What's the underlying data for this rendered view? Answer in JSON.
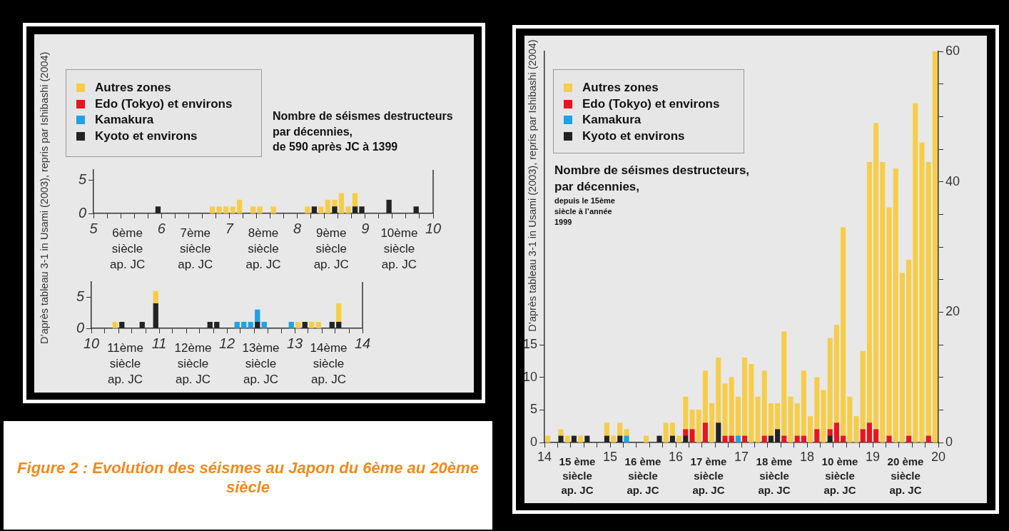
{
  "chart_data": [
    {
      "type": "bar",
      "title": "Nombre de séismes destructeurs par décennies,",
      "subtitle": "de 590 après JC à 1399",
      "stacked": true,
      "legend": "top left",
      "x": [
        5.95,
        6.75,
        6.85,
        6.95,
        7.05,
        7.15,
        7.35,
        7.45,
        7.65,
        8.15,
        8.25,
        8.35,
        8.45,
        8.55,
        8.65,
        8.75,
        8.85,
        8.95,
        9.35,
        9.75
      ],
      "xlim": [
        5,
        10
      ],
      "xticks": [
        5,
        {
          "value": 5.2,
          "label": null
        },
        {
          "value": 5.4,
          "label": null
        },
        {
          "value": 5.6,
          "label": null
        },
        {
          "value": 5.8,
          "label": null
        },
        6,
        {
          "value": 6.2,
          "label": null
        },
        {
          "value": 6.4,
          "label": null
        },
        {
          "value": 6.6,
          "label": null
        },
        {
          "value": 6.8,
          "label": null
        },
        7,
        {
          "value": 7.2,
          "label": null
        },
        {
          "value": 7.4,
          "label": null
        },
        {
          "value": 7.6,
          "label": null
        },
        {
          "value": 7.8,
          "label": null
        },
        8,
        {
          "value": 8.2,
          "label": null
        },
        {
          "value": 8.4,
          "label": null
        },
        {
          "value": 8.6,
          "label": null
        },
        {
          "value": 8.8,
          "label": null
        },
        9,
        {
          "value": 9.2,
          "label": null
        },
        {
          "value": 9.4,
          "label": null
        },
        {
          "value": 9.6,
          "label": null
        },
        {
          "value": 9.8,
          "label": null
        },
        10
      ],
      "ylim": [
        0,
        6.5
      ],
      "yticks": [
        0,
        5
      ],
      "series": [
        {
          "name": "Kyoto et environs",
          "color": "#232323",
          "values": [
            1,
            null,
            null,
            null,
            null,
            null,
            null,
            null,
            null,
            null,
            1,
            null,
            null,
            1,
            null,
            null,
            1,
            1,
            2,
            1
          ]
        },
        {
          "name": "Kamakura",
          "color": "#1fa2e6",
          "values": [
            null,
            null,
            null,
            null,
            null,
            null,
            null,
            null,
            null,
            null,
            null,
            null,
            null,
            null,
            null,
            null,
            null,
            null,
            null,
            null
          ]
        },
        {
          "name": "Edo (Tokyo) et environs",
          "color": "#e8141e",
          "values": [
            null,
            null,
            null,
            null,
            null,
            null,
            null,
            null,
            null,
            null,
            null,
            null,
            null,
            null,
            null,
            null,
            null,
            null,
            null,
            null
          ]
        },
        {
          "name": "Autres zones",
          "color": "#f6cd4a",
          "values": [
            null,
            1,
            1,
            1,
            1,
            2,
            1,
            1,
            1,
            1,
            null,
            1,
            2,
            1,
            3,
            1,
            2,
            null,
            null,
            null
          ]
        }
      ],
      "annotations": [
        "D’après tableau 3-1 in Usami (2003), repris par Ishibashi (2004)",
        "Figure 2 : Evolution des séismes au Japon du 6ème au 20ème siècle",
        "6ème\nsiècle\nap. JC",
        "7ème\nsiècle\nap. JC",
        "8ème\nsiècle\nap. JC",
        "9ème\nsiècle\nap. JC",
        "10ème\nsiècle\nap. JC"
      ]
    },
    {
      "type": "bar",
      "stacked": true,
      "x": [
        10.35,
        10.45,
        10.75,
        10.95,
        11.75,
        11.85,
        12.15,
        12.25,
        12.35,
        12.45,
        12.55,
        12.95,
        13.05,
        13.15,
        13.25,
        13.35,
        13.55,
        13.65
      ],
      "xlim": [
        10,
        14
      ],
      "xticks": [
        10,
        {
          "value": 10.2,
          "label": null
        },
        {
          "value": 10.4,
          "label": null
        },
        {
          "value": 10.6,
          "label": null
        },
        {
          "value": 10.8,
          "label": null
        },
        11,
        {
          "value": 11.2,
          "label": null
        },
        {
          "value": 11.4,
          "label": null
        },
        {
          "value": 11.6,
          "label": null
        },
        {
          "value": 11.8,
          "label": null
        },
        12,
        {
          "value": 12.2,
          "label": null
        },
        {
          "value": 12.4,
          "label": null
        },
        {
          "value": 12.6,
          "label": null
        },
        {
          "value": 12.8,
          "label": null
        },
        13,
        {
          "value": 13.2,
          "label": null
        },
        {
          "value": 13.4,
          "label": null
        },
        {
          "value": 13.6,
          "label": null
        },
        {
          "value": 13.8,
          "label": null
        },
        14
      ],
      "ylim": [
        0,
        7.5
      ],
      "yticks": [
        0,
        5
      ],
      "series": [
        {
          "color": "#232323",
          "values": [
            null,
            1,
            1,
            4,
            1,
            1,
            null,
            null,
            null,
            1,
            null,
            null,
            null,
            1,
            null,
            null,
            1,
            1
          ]
        },
        {
          "color": "#1fa2e6",
          "values": [
            null,
            null,
            null,
            null,
            null,
            null,
            1,
            1,
            1,
            2,
            1,
            1,
            null,
            null,
            null,
            null,
            null,
            null
          ]
        },
        {
          "color": "#f6cd4a",
          "values": [
            1,
            null,
            null,
            2,
            null,
            null,
            null,
            null,
            null,
            null,
            null,
            null,
            1,
            null,
            1,
            1,
            null,
            3
          ]
        }
      ],
      "annotations": [
        "11ème\nsiècle\nap. JC",
        "12ème\nsiècle\nap. JC",
        "13ème\nsiècle\nap. JC",
        "14ème\nsiècle\nap. JC"
      ]
    },
    {
      "type": "bar",
      "title": "Nombre de séismes destructeurs, par décennies,",
      "subtitle": "depuis le 15ème siècle à l’année 1999",
      "stacked": true,
      "legend": "top left",
      "x": [
        14.05,
        14.25,
        14.35,
        14.45,
        14.55,
        14.65,
        14.95,
        15.05,
        15.15,
        15.25,
        15.55,
        15.75,
        15.85,
        15.95,
        16.05,
        16.15,
        16.25,
        16.35,
        16.45,
        16.55,
        16.65,
        16.75,
        16.85,
        16.95,
        17.05,
        17.15,
        17.25,
        17.35,
        17.45,
        17.55,
        17.65,
        17.75,
        17.85,
        17.95,
        18.05,
        18.15,
        18.25,
        18.35,
        18.45,
        18.55,
        18.65,
        18.75,
        18.85,
        18.95,
        19.05,
        19.15,
        19.25,
        19.35,
        19.45,
        19.55,
        19.65,
        19.75,
        19.85,
        19.95
      ],
      "xlim": [
        14,
        20
      ],
      "xticks": [
        14,
        {
          "value": 14.2,
          "label": null
        },
        {
          "value": 14.4,
          "label": null
        },
        {
          "value": 14.6,
          "label": null
        },
        {
          "value": 14.8,
          "label": null
        },
        15,
        {
          "value": 15.2,
          "label": null
        },
        {
          "value": 15.4,
          "label": null
        },
        {
          "value": 15.6,
          "label": null
        },
        {
          "value": 15.8,
          "label": null
        },
        16,
        {
          "value": 16.2,
          "label": null
        },
        {
          "value": 16.4,
          "label": null
        },
        {
          "value": 16.6,
          "label": null
        },
        {
          "value": 16.8,
          "label": null
        },
        17,
        {
          "value": 17.2,
          "label": null
        },
        {
          "value": 17.4,
          "label": null
        },
        {
          "value": 17.6,
          "label": null
        },
        {
          "value": 17.8,
          "label": null
        },
        18,
        {
          "value": 18.2,
          "label": null
        },
        {
          "value": 18.4,
          "label": null
        },
        {
          "value": 18.6,
          "label": null
        },
        {
          "value": 18.8,
          "label": null
        },
        19,
        {
          "value": 19.2,
          "label": null
        },
        {
          "value": 19.4,
          "label": null
        },
        {
          "value": 19.6,
          "label": null
        },
        {
          "value": 19.8,
          "label": null
        },
        20
      ],
      "ylim": [
        0,
        60
      ],
      "yticks": [
        0,
        5,
        10,
        15
      ],
      "y2lim": [
        0,
        60
      ],
      "y2ticks": [
        0,
        {
          "value": 5,
          "label": null
        },
        {
          "value": 10,
          "label": null
        },
        {
          "value": 15,
          "label": null
        },
        20,
        {
          "value": 25,
          "label": null
        },
        {
          "value": 30,
          "label": null
        },
        {
          "value": 35,
          "label": null
        },
        40,
        {
          "value": 45,
          "label": null
        },
        {
          "value": 50,
          "label": null
        },
        {
          "value": 55,
          "label": null
        },
        60
      ],
      "series": [
        {
          "name": "Kyoto et environs",
          "color": "#232323",
          "values": [
            null,
            1,
            null,
            1,
            null,
            1,
            1,
            null,
            1,
            null,
            null,
            1,
            null,
            1,
            null,
            1,
            null,
            null,
            null,
            null,
            3,
            null,
            null,
            null,
            null,
            null,
            null,
            null,
            1,
            2,
            null,
            null,
            null,
            null,
            null,
            null,
            null,
            1,
            null,
            null,
            null,
            null,
            null,
            null,
            null,
            null,
            null,
            null,
            null,
            null,
            null,
            null,
            null,
            null
          ]
        },
        {
          "name": "Kamakura",
          "color": "#1fa2e6",
          "values": [
            null,
            null,
            null,
            null,
            null,
            null,
            null,
            null,
            null,
            1,
            null,
            null,
            null,
            null,
            null,
            null,
            null,
            null,
            null,
            null,
            null,
            null,
            null,
            1,
            null,
            null,
            null,
            null,
            null,
            null,
            null,
            null,
            null,
            null,
            null,
            null,
            null,
            null,
            null,
            null,
            null,
            null,
            null,
            null,
            null,
            null,
            null,
            null,
            null,
            null,
            null,
            null,
            null,
            null
          ]
        },
        {
          "name": "Edo (Tokyo) et environs",
          "color": "#e8141e",
          "values": [
            null,
            null,
            null,
            null,
            null,
            null,
            null,
            null,
            null,
            null,
            null,
            null,
            null,
            null,
            null,
            1,
            2,
            null,
            3,
            null,
            null,
            1,
            1,
            null,
            1,
            null,
            null,
            1,
            null,
            null,
            1,
            null,
            1,
            1,
            null,
            2,
            null,
            1,
            3,
            1,
            null,
            null,
            2,
            3,
            2,
            null,
            1,
            null,
            null,
            1,
            null,
            null,
            1,
            null
          ]
        },
        {
          "name": "Autres zones",
          "color": "#f6cd4a",
          "values": [
            1,
            1,
            1,
            null,
            1,
            null,
            2,
            1,
            2,
            1,
            1,
            null,
            3,
            2,
            1,
            5,
            3,
            5,
            8,
            6,
            10,
            8,
            9,
            6,
            12,
            12,
            7,
            10,
            5,
            4,
            16,
            7,
            5,
            10,
            4,
            8,
            8,
            14,
            15,
            32,
            7,
            4,
            12,
            40,
            47,
            43,
            35,
            42,
            26,
            27,
            52,
            46,
            42,
            60
          ]
        }
      ],
      "annotations": [
        "D’après tableau 3-1 in Usami (2003), repris par Ishibashi (2004)",
        "15 ème\nsiècle\nap. JC",
        "16 ème\nsiècle\nap. JC",
        "17 ème\nsiècle\nap. JC",
        "18 ème\nsiècle\nap. JC",
        "10 ème\nsiècle\nap. JC",
        "20 ème\nsiècle\nap. JC"
      ]
    }
  ]
}
